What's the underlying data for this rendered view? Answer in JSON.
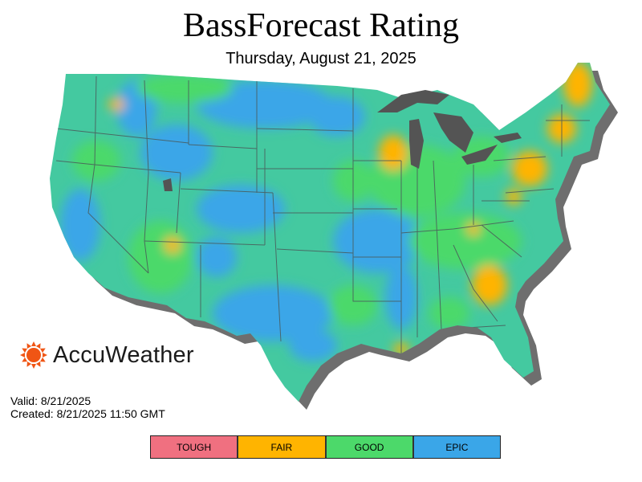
{
  "header": {
    "title": "BassForecast Rating",
    "date": "Thursday, August 21, 2025"
  },
  "brand": {
    "name": "AccuWeather",
    "icon": "sun-icon",
    "color": "#f05514"
  },
  "info": {
    "valid_label": "Valid: 8/21/2025",
    "created_label": "Created: 8/21/2025 11:50 GMT"
  },
  "legend": [
    {
      "label": "TOUGH",
      "color": "#f07080"
    },
    {
      "label": "FAIR",
      "color": "#ffb400"
    },
    {
      "label": "GOOD",
      "color": "#4cd96a"
    },
    {
      "label": "EPIC",
      "color": "#3aa6e8"
    }
  ],
  "map": {
    "base_color": "#44c9a0",
    "lake_color": "#545454",
    "shadow_color": "#6e6e6e",
    "border_color": "#4a5a5a"
  }
}
